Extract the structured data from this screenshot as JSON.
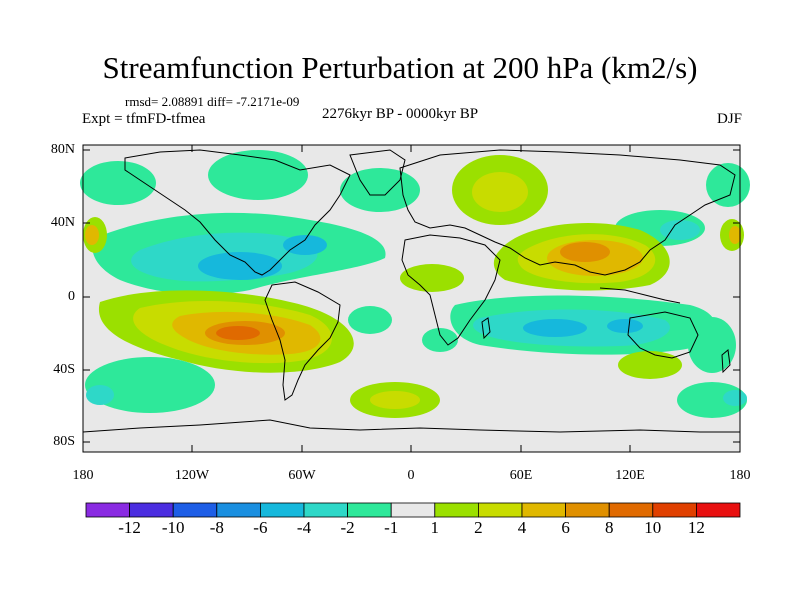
{
  "title": "Streamfunction Perturbation at 200 hPa (km2/s)",
  "stats": "rmsd= 2.08891 diff= -7.2171e-09",
  "experiment": "Expt = tfmFD-tfmea",
  "period": "2276kyr BP - 0000kyr BP",
  "season": "DJF",
  "axes": {
    "x_ticks": [
      "180",
      "120W",
      "60W",
      "0",
      "60E",
      "120E",
      "180"
    ],
    "y_ticks": [
      "80N",
      "40N",
      "0",
      "40S",
      "80S"
    ]
  },
  "colorbar": {
    "labels": [
      "-12",
      "-10",
      "-8",
      "-6",
      "-4",
      "-2",
      "-1",
      "1",
      "2",
      "4",
      "6",
      "8",
      "10",
      "12"
    ],
    "colors": [
      "#8a2be2",
      "#4b2de0",
      "#1e5ee6",
      "#1a8fe0",
      "#16b8dc",
      "#2ed8c8",
      "#2ee89a",
      "#e8e8e8",
      "#9be000",
      "#c8dc00",
      "#e0b800",
      "#e09000",
      "#e06a00",
      "#e04000",
      "#e81010"
    ]
  },
  "field_levels": {
    "neg_light": "#2ee89a",
    "neg_mid": "#2ed8c8",
    "neg_strong": "#16b8dc",
    "pos_light": "#9be000",
    "pos_mid": "#c8dc00",
    "pos_strong": "#e0b800",
    "pos_stronger": "#e09000",
    "pos_max": "#e06a00",
    "background": "#e8e8e8"
  }
}
